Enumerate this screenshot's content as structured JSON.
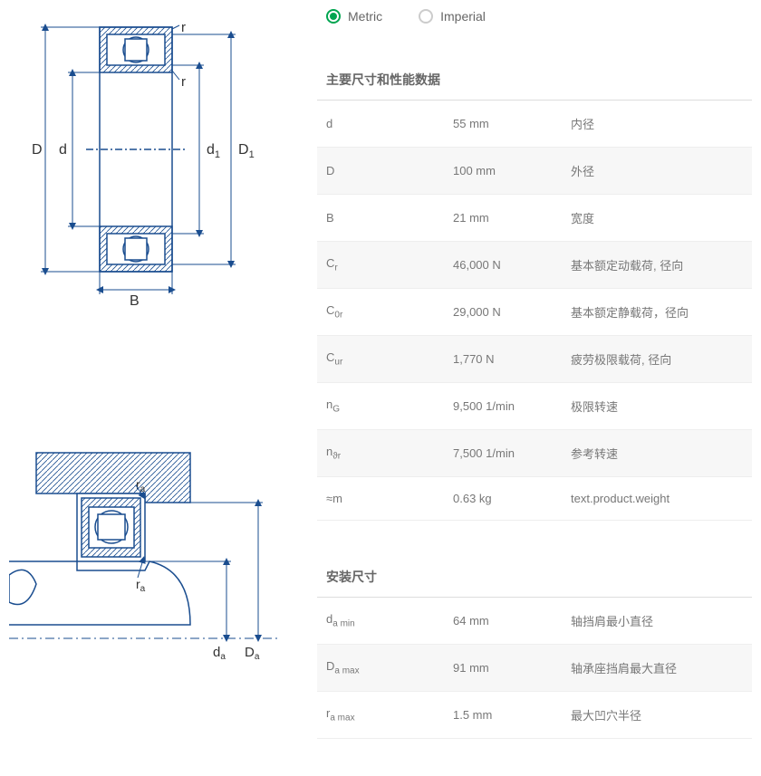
{
  "units": {
    "metric_label": "Metric",
    "imperial_label": "Imperial",
    "selected": "metric"
  },
  "sections": {
    "main_dims": {
      "title": "主要尺寸和性能数据",
      "rows": [
        {
          "symbol_html": "d",
          "value": "55 mm",
          "desc": "内径"
        },
        {
          "symbol_html": "D",
          "value": "100 mm",
          "desc": "外径"
        },
        {
          "symbol_html": "B",
          "value": "21 mm",
          "desc": "宽度"
        },
        {
          "symbol_html": "C<sub>r</sub>",
          "value": "46,000 N",
          "desc": "基本额定动载荷, 径向"
        },
        {
          "symbol_html": "C<sub>0r</sub>",
          "value": "29,000 N",
          "desc": "基本额定静载荷，径向"
        },
        {
          "symbol_html": "C<sub>ur</sub>",
          "value": "1,770 N",
          "desc": "疲劳极限载荷, 径向"
        },
        {
          "symbol_html": "n<sub>G</sub>",
          "value": "9,500 1/min",
          "desc": "极限转速"
        },
        {
          "symbol_html": "n<sub>ϑr</sub>",
          "value": "7,500 1/min",
          "desc": "参考转速"
        },
        {
          "symbol_html": "≈m",
          "value": "0.63 kg",
          "desc": "text.product.weight"
        }
      ]
    },
    "mounting": {
      "title": "安装尺寸",
      "rows": [
        {
          "symbol_html": "d<sub>a min</sub>",
          "value": "64 mm",
          "desc": "轴挡肩最小直径"
        },
        {
          "symbol_html": "D<sub>a max</sub>",
          "value": "91 mm",
          "desc": "轴承座挡肩最大直径"
        },
        {
          "symbol_html": "r<sub>a max</sub>",
          "value": "1.5 mm",
          "desc": "最大凹穴半径"
        }
      ]
    }
  },
  "diagram_colors": {
    "stroke": "#1a4d8f",
    "fill_hatch": "#1a4d8f",
    "text": "#333333"
  }
}
